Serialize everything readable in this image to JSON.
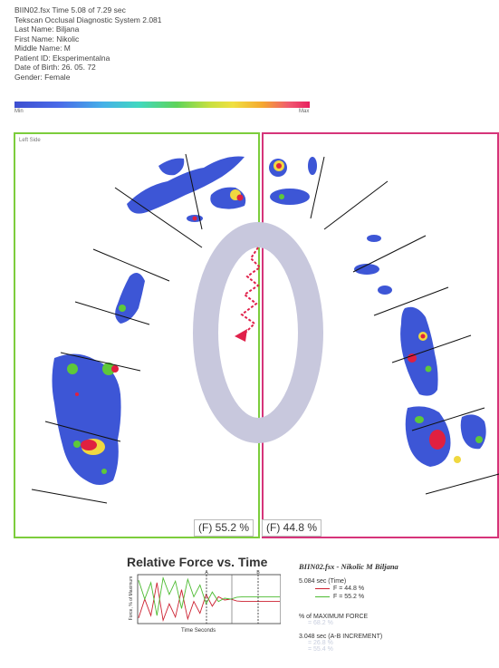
{
  "header": {
    "lines": [
      "BIIN02.fsx Time 5.08 of 7.29 sec",
      "Tekscan Occlusal Diagnostic System 2.081",
      "Last Name: Biljana",
      "First Name: Nikolic",
      "Middle Name: M",
      "Patient ID: Eksperimentalna",
      "Date of Birth: 26. 05. 72",
      "Gender: Female"
    ]
  },
  "color_scale": {
    "min_label": "Min",
    "max_label": "Max"
  },
  "left_panel": {
    "label": "Left Side",
    "color": "#7ccd3c",
    "percent": "(F) 55.2 %"
  },
  "right_panel": {
    "color": "#d6347a",
    "percent": "(F) 44.8 %"
  },
  "arch_color": "#c8c8dd",
  "force_chart": {
    "title": "Relative Force vs. Time",
    "ylabel": "Force, % of Maximum",
    "xlabel": "Time Seconds",
    "marker_a": "A",
    "marker_b": "B"
  },
  "chart_data": {
    "type": "line",
    "title": "Relative Force vs. Time",
    "xlabel": "Time Seconds",
    "ylabel": "Force, % of Maximum",
    "series": [
      {
        "name": "F = 44.8 %",
        "color": "#cc2030",
        "values": [
          10,
          50,
          15,
          85,
          5,
          40,
          12,
          70,
          8,
          45,
          20,
          60,
          35,
          55,
          48,
          50,
          46,
          45,
          45,
          45,
          45,
          45,
          45,
          45
        ]
      },
      {
        "name": "F = 55.2 %",
        "color": "#4cbb30",
        "values": [
          90,
          50,
          85,
          15,
          95,
          60,
          88,
          30,
          92,
          55,
          80,
          40,
          65,
          45,
          52,
          50,
          54,
          55,
          55,
          55,
          55,
          55,
          55,
          55
        ]
      }
    ]
  },
  "legend": {
    "title": "BIIN02.fsx - Nikolic M Biljana",
    "time_line": "5.084 sec (Time)",
    "series1": "F = 44.8 %",
    "series2": "F = 55.2 %",
    "max_force": "% of MAXIMUM FORCE",
    "max_force_value": "= 68.2 %",
    "increment": "3.048 sec (A-B INCREMENT)",
    "increment_a": "= 26.8 %",
    "increment_b": "= 55.4 %"
  }
}
